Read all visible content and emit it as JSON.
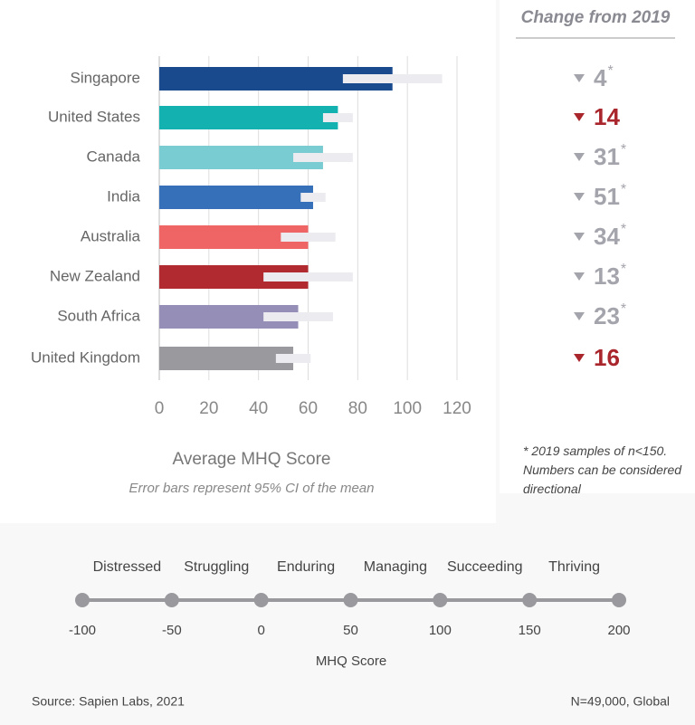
{
  "chart_data": [
    {
      "type": "bar",
      "orientation": "horizontal",
      "categories": [
        "Singapore",
        "United States",
        "Canada",
        "India",
        "Australia",
        "New Zealand",
        "South Africa",
        "United Kingdom"
      ],
      "values": [
        94,
        72,
        66,
        62,
        60,
        60,
        56,
        54
      ],
      "errors": [
        20,
        6,
        12,
        5,
        11,
        18,
        14,
        7
      ],
      "colors": [
        "#1a4a8e",
        "#14b1b1",
        "#79ccd2",
        "#3570b8",
        "#ef6464",
        "#b02a30",
        "#958fb8",
        "#9a9a9e"
      ],
      "error_color": "#ebebf0",
      "xlim": [
        0,
        120
      ],
      "xticks": [
        0,
        20,
        40,
        60,
        80,
        100,
        120
      ],
      "grid": true,
      "xlabel": "Average MHQ Score",
      "subtitle": "Error bars represent 95% CI of the mean"
    },
    {
      "type": "scale",
      "categories": [
        "Distressed",
        "Struggling",
        "Enduring",
        "Managing",
        "Succeeding",
        "Thriving"
      ],
      "xlim": [
        -100,
        200
      ],
      "xticks": [
        -100,
        -50,
        0,
        50,
        100,
        150,
        200
      ],
      "xlabel": "MHQ Score",
      "color": "#9a9a9e"
    }
  ],
  "change_panel": {
    "title": "Change from 2019",
    "values": [
      4,
      14,
      31,
      51,
      34,
      13,
      23,
      16
    ],
    "flags": [
      "*",
      null,
      "*",
      "*",
      "*",
      "*",
      "*",
      null
    ],
    "colors": [
      "#a4a4ac",
      "#a8262c",
      "#a4a4ac",
      "#a4a4ac",
      "#a4a4ac",
      "#a4a4ac",
      "#a4a4ac",
      "#a8262c"
    ],
    "note": "* 2019 samples of n<150. Numbers can be considered directional"
  },
  "footer": {
    "source": "Source: Sapien Labs, 2021",
    "sample": "N=49,000, Global"
  }
}
